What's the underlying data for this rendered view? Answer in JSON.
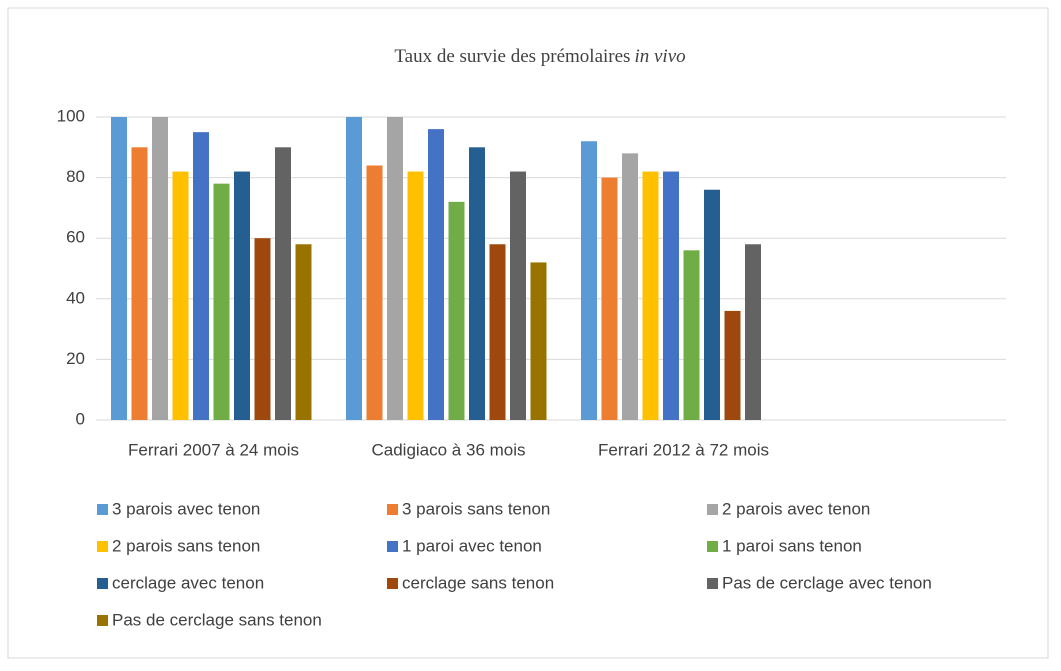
{
  "chart_data": {
    "type": "bar",
    "title": "Taux de survie des prémolaires",
    "title_emphasis": "in vivo",
    "categories": [
      "Ferrari 2007 à 24 mois",
      "Cadigiaco à 36 mois",
      "Ferrari 2012 à 72 mois",
      null
    ],
    "series": [
      {
        "name": "3 parois avec tenon",
        "color": "#5b9bd5",
        "values": [
          100,
          100,
          92,
          null
        ]
      },
      {
        "name": "3 parois sans tenon",
        "color": "#ed7d31",
        "values": [
          90,
          84,
          80,
          null
        ]
      },
      {
        "name": "2 parois avec tenon",
        "color": "#a5a5a5",
        "values": [
          100,
          100,
          88,
          null
        ]
      },
      {
        "name": "2 parois sans tenon",
        "color": "#ffc000",
        "values": [
          82,
          82,
          82,
          null
        ]
      },
      {
        "name": "1 paroi avec tenon",
        "color": "#4472c4",
        "values": [
          95,
          96,
          82,
          null
        ]
      },
      {
        "name": "1 paroi sans tenon",
        "color": "#70ad47",
        "values": [
          78,
          72,
          56,
          null
        ]
      },
      {
        "name": "cerclage avec tenon",
        "color": "#255e91",
        "values": [
          82,
          90,
          76,
          null
        ]
      },
      {
        "name": "cerclage sans tenon",
        "color": "#9e480e",
        "values": [
          60,
          58,
          36,
          null
        ]
      },
      {
        "name": "Pas de cerclage avec tenon",
        "color": "#636363",
        "values": [
          90,
          82,
          58,
          null
        ]
      },
      {
        "name": "Pas de cerclage sans tenon",
        "color": "#997300",
        "values": [
          58,
          52,
          null,
          null
        ]
      }
    ],
    "ylim": [
      0,
      100
    ],
    "yticks": [
      0,
      20,
      40,
      60,
      80,
      100
    ],
    "grid": true,
    "legend": "bottom"
  }
}
